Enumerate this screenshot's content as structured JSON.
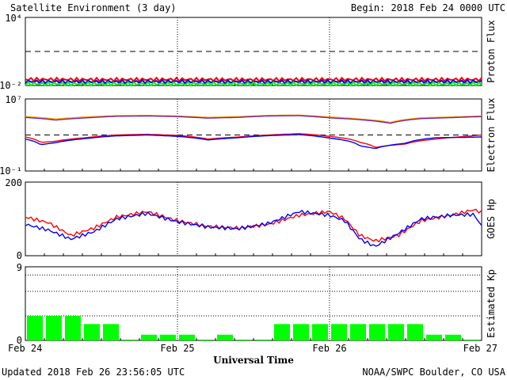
{
  "header": {
    "title": "Satellite Environment (3 day)",
    "begin": "Begin:  2018 Feb 24 0000 UTC"
  },
  "footer": {
    "updated": "Updated 2018 Feb 26 23:56:05 UTC",
    "credit": "NOAA/SWPC Boulder, CO USA"
  },
  "x_axis": {
    "label": "Universal Time",
    "ticks": [
      "Feb 24",
      "Feb 25",
      "Feb 26",
      "Feb 27"
    ],
    "range_days": [
      0,
      3
    ]
  },
  "colors": {
    "red": "#ff0000",
    "blue": "#0000ff",
    "green": "#00ff00",
    "orange": "#ffa500",
    "purple": "#7a1fa0"
  },
  "chart_data": [
    {
      "type": "line",
      "panel": "proton",
      "ylabel": "Proton Flux",
      "yscale": "log",
      "ylim": [
        0.01,
        10000
      ],
      "ytick_labels": [
        "10⁴",
        "10⁻²"
      ],
      "threshold": 10,
      "grid": "vertical dotted at day boundaries",
      "series": [
        {
          "color": "#ff0000",
          "x": [
            0,
            0.5,
            1,
            1.5,
            2,
            2.5,
            3
          ],
          "y": [
            0.035,
            0.033,
            0.034,
            0.033,
            0.034,
            0.033,
            0.034
          ]
        },
        {
          "color": "#0000ff",
          "x": [
            0,
            0.5,
            1,
            1.5,
            2,
            2.5,
            3
          ],
          "y": [
            0.022,
            0.021,
            0.022,
            0.021,
            0.022,
            0.021,
            0.022
          ]
        },
        {
          "color": "#00ff00",
          "x": [
            0,
            0.5,
            1,
            1.5,
            2,
            2.5,
            3
          ],
          "y": [
            0.014,
            0.014,
            0.014,
            0.014,
            0.014,
            0.014,
            0.014
          ]
        }
      ]
    },
    {
      "type": "line",
      "panel": "electron",
      "ylabel": "Electron Flux",
      "yscale": "log",
      "ylim": [
        0.1,
        10000000
      ],
      "ytick_labels": [
        "10⁷",
        "10⁻¹"
      ],
      "threshold": 1000,
      "series": [
        {
          "color": "#ffa500",
          "x": [
            0,
            0.2,
            0.4,
            0.6,
            0.8,
            1,
            1.2,
            1.4,
            1.6,
            1.8,
            2,
            2.2,
            2.4,
            2.6,
            2.8,
            3
          ],
          "y": [
            110000,
            60000,
            100000,
            140000,
            150000,
            130000,
            90000,
            110000,
            150000,
            160000,
            100000,
            60000,
            25000,
            80000,
            100000,
            130000
          ]
        },
        {
          "color": "#7a1fa0",
          "x": [
            0,
            0.2,
            0.4,
            0.6,
            0.8,
            1,
            1.2,
            1.4,
            1.6,
            1.8,
            2,
            2.2,
            2.4,
            2.6,
            2.8,
            3
          ],
          "y": [
            90000,
            45000,
            80000,
            120000,
            130000,
            110000,
            75000,
            90000,
            130000,
            140000,
            80000,
            50000,
            20000,
            65000,
            85000,
            110000
          ]
        },
        {
          "color": "#ff0000",
          "x": [
            0,
            0.1,
            0.2,
            0.4,
            0.6,
            0.8,
            1,
            1.2,
            1.4,
            1.6,
            1.8,
            2,
            2.2,
            2.3,
            2.5,
            2.7,
            2.9,
            3
          ],
          "y": [
            600,
            150,
            200,
            500,
            1000,
            1200,
            900,
            350,
            600,
            1000,
            1400,
            700,
            150,
            40,
            100,
            350,
            700,
            1000
          ]
        },
        {
          "color": "#0000ff",
          "x": [
            0,
            0.1,
            0.2,
            0.4,
            0.6,
            0.8,
            1,
            1.2,
            1.4,
            1.6,
            1.8,
            2,
            2.2,
            2.3,
            2.5,
            2.7,
            2.9,
            3
          ],
          "y": [
            350,
            80,
            140,
            400,
            800,
            1000,
            700,
            280,
            500,
            850,
            1100,
            450,
            60,
            30,
            120,
            500,
            550,
            600
          ]
        }
      ]
    },
    {
      "type": "line",
      "panel": "hp",
      "ylabel": "GOES Hp",
      "ylim": [
        0,
        200
      ],
      "ytick_labels": [
        "200",
        "0"
      ],
      "series": [
        {
          "color": "#ff0000",
          "x": [
            0,
            0.15,
            0.3,
            0.45,
            0.6,
            0.8,
            1,
            1.2,
            1.4,
            1.6,
            1.8,
            2,
            2.1,
            2.2,
            2.3,
            2.45,
            2.6,
            2.8,
            2.95,
            3
          ],
          "y": [
            105,
            90,
            55,
            75,
            105,
            120,
            95,
            80,
            75,
            85,
            110,
            120,
            100,
            55,
            40,
            55,
            95,
            110,
            125,
            118
          ]
        },
        {
          "color": "#0000ff",
          "x": [
            0,
            0.15,
            0.3,
            0.45,
            0.6,
            0.8,
            1,
            1.2,
            1.4,
            1.6,
            1.8,
            2,
            2.1,
            2.2,
            2.3,
            2.45,
            2.6,
            2.8,
            2.95,
            3
          ],
          "y": [
            85,
            70,
            45,
            65,
            100,
            115,
            92,
            78,
            73,
            88,
            120,
            110,
            95,
            45,
            25,
            60,
            100,
            110,
            112,
            80
          ]
        }
      ]
    },
    {
      "type": "bar",
      "panel": "kp",
      "ylabel": "Estimated Kp",
      "ylim": [
        0,
        9
      ],
      "ytick_labels": [
        "9",
        "0"
      ],
      "bar_width_days": 0.125,
      "values": [
        3,
        3,
        3,
        2,
        2,
        0.1,
        0.7,
        0.7,
        0.7,
        0.1,
        0.7,
        0.1,
        0.1,
        2,
        2,
        2,
        2,
        2,
        2,
        2,
        2,
        0.7,
        0.7,
        0.1
      ],
      "color": "#00ff00"
    }
  ]
}
